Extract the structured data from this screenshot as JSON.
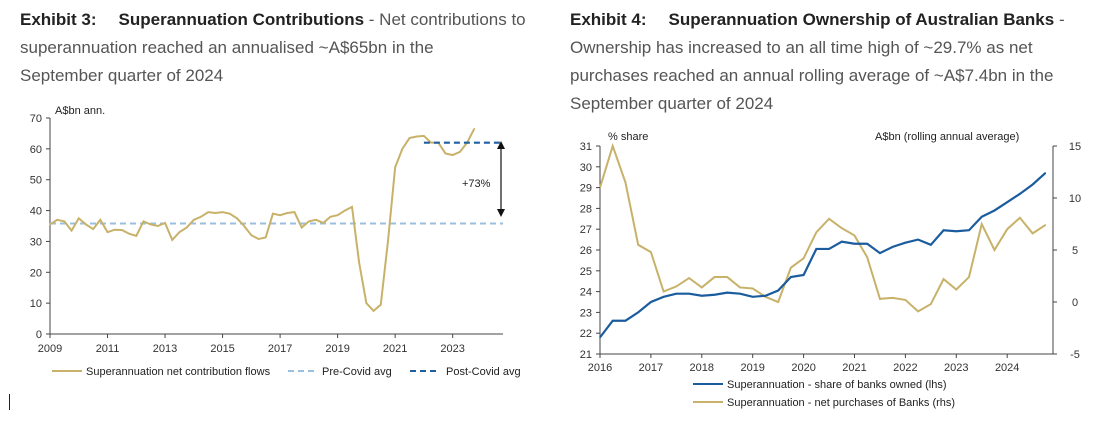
{
  "exhibit3": {
    "number": "Exhibit 3:",
    "heading": "Superannuation Contributions",
    "dash": " - ",
    "desc_line1": "Net contributions to",
    "desc_line2": "superannuation reached an annualised ~A$65bn in the",
    "desc_line3": "September quarter of 2024"
  },
  "exhibit4": {
    "number": "Exhibit 4:",
    "heading": "Superannuation Ownership of Australian Banks",
    "dash": " -",
    "desc_line1": "Ownership has increased to an all time high of ~29.7% as net",
    "desc_line2": "purchases reached an annual rolling average of ~A$7.4bn in the",
    "desc_line3": "September quarter of 2024"
  },
  "colors": {
    "gold": "#c8b26a",
    "navy": "#1b5c9e",
    "lightblue": "#9bbfde",
    "darkblue": "#1f5fa0"
  },
  "chart_data": [
    {
      "type": "line",
      "ylabel": "A$bn ann.",
      "ylim": [
        0,
        70
      ],
      "yticks": [
        "0",
        "10",
        "20",
        "30",
        "40",
        "50",
        "60",
        "70"
      ],
      "xlim": [
        2009,
        2024.75
      ],
      "xticks": [
        "2009",
        "2011",
        "2013",
        "2015",
        "2017",
        "2019",
        "2021",
        "2023"
      ],
      "annotation": "+73%",
      "series": [
        {
          "name": "Superannuation net contribution flows",
          "points": [
            [
              2009,
              35.5
            ],
            [
              2009.25,
              37
            ],
            [
              2009.5,
              36.5
            ],
            [
              2009.75,
              33.5
            ],
            [
              2010,
              37.5
            ],
            [
              2010.25,
              35.5
            ],
            [
              2010.5,
              34
            ],
            [
              2010.75,
              37
            ],
            [
              2011,
              33
            ],
            [
              2011.25,
              33.8
            ],
            [
              2011.5,
              33.7
            ],
            [
              2011.75,
              32.5
            ],
            [
              2012,
              31.8
            ],
            [
              2012.25,
              36.5
            ],
            [
              2012.5,
              35.5
            ],
            [
              2012.75,
              35
            ],
            [
              2013,
              36
            ],
            [
              2013.25,
              30.5
            ],
            [
              2013.5,
              33
            ],
            [
              2013.75,
              34.5
            ],
            [
              2014,
              37
            ],
            [
              2014.25,
              38
            ],
            [
              2014.5,
              39.5
            ],
            [
              2014.75,
              39.2
            ],
            [
              2015,
              39.5
            ],
            [
              2015.25,
              39
            ],
            [
              2015.5,
              37.5
            ],
            [
              2015.75,
              35
            ],
            [
              2016,
              32
            ],
            [
              2016.25,
              30.8
            ],
            [
              2016.5,
              31.3
            ],
            [
              2016.75,
              39
            ],
            [
              2017,
              38.5
            ],
            [
              2017.25,
              39.2
            ],
            [
              2017.5,
              39.5
            ],
            [
              2017.75,
              34.5
            ],
            [
              2018,
              36.5
            ],
            [
              2018.25,
              37
            ],
            [
              2018.5,
              36
            ],
            [
              2018.75,
              38
            ],
            [
              2019,
              38.5
            ],
            [
              2019.25,
              40
            ],
            [
              2019.5,
              41.2
            ],
            [
              2019.75,
              23
            ],
            [
              2020,
              10
            ],
            [
              2020.25,
              7.5
            ],
            [
              2020.5,
              9.5
            ],
            [
              2020.75,
              30
            ],
            [
              2021,
              54
            ],
            [
              2021.25,
              60
            ],
            [
              2021.5,
              63.5
            ],
            [
              2021.75,
              64
            ],
            [
              2022,
              64.2
            ],
            [
              2022.25,
              62
            ],
            [
              2022.5,
              62
            ],
            [
              2022.75,
              58.5
            ],
            [
              2023,
              58
            ],
            [
              2023.25,
              59
            ],
            [
              2023.5,
              62
            ],
            [
              2023.75,
              66.5
            ]
          ]
        },
        {
          "name": "Pre-Covid avg",
          "from": 2009,
          "to": 2024.75,
          "value": 35.8
        },
        {
          "name": "Post-Covid avg",
          "from": 2022,
          "to": 2024.75,
          "value": 62
        }
      ]
    },
    {
      "type": "line",
      "ylabel_left": "% share",
      "ylabel_right": "A$bn (rolling annual average)",
      "ylim_left": [
        21,
        31
      ],
      "ylim_right": [
        -5,
        15
      ],
      "yticks_left": [
        "21",
        "22",
        "23",
        "24",
        "25",
        "26",
        "27",
        "28",
        "29",
        "30",
        "31"
      ],
      "yticks_right": [
        "-5",
        "0",
        "5",
        "10",
        "15"
      ],
      "xlim": [
        2016,
        2024.9
      ],
      "xticks": [
        "2016",
        "2017",
        "2018",
        "2019",
        "2020",
        "2021",
        "2022",
        "2023",
        "2024"
      ],
      "series": [
        {
          "name": "Superannuation - share of banks owned (lhs)",
          "axis": "left",
          "points": [
            [
              2016,
              21.8
            ],
            [
              2016.25,
              22.6
            ],
            [
              2016.5,
              22.6
            ],
            [
              2016.75,
              23
            ],
            [
              2017,
              23.5
            ],
            [
              2017.25,
              23.75
            ],
            [
              2017.5,
              23.9
            ],
            [
              2017.75,
              23.9
            ],
            [
              2018,
              23.8
            ],
            [
              2018.25,
              23.85
            ],
            [
              2018.5,
              23.95
            ],
            [
              2018.75,
              23.9
            ],
            [
              2019,
              23.75
            ],
            [
              2019.25,
              23.8
            ],
            [
              2019.5,
              24.05
            ],
            [
              2019.75,
              24.7
            ],
            [
              2020,
              24.8
            ],
            [
              2020.25,
              26.05
            ],
            [
              2020.5,
              26.05
            ],
            [
              2020.75,
              26.4
            ],
            [
              2021,
              26.3
            ],
            [
              2021.25,
              26.3
            ],
            [
              2021.5,
              25.85
            ],
            [
              2021.75,
              26.15
            ],
            [
              2022,
              26.35
            ],
            [
              2022.25,
              26.5
            ],
            [
              2022.5,
              26.25
            ],
            [
              2022.75,
              26.95
            ],
            [
              2023,
              26.9
            ],
            [
              2023.25,
              26.95
            ],
            [
              2023.5,
              27.6
            ],
            [
              2023.75,
              27.9
            ],
            [
              2024,
              28.3
            ],
            [
              2024.25,
              28.7
            ],
            [
              2024.5,
              29.15
            ],
            [
              2024.75,
              29.7
            ]
          ]
        },
        {
          "name": "Superannuation - net purchases of Banks (rhs)",
          "axis": "right",
          "points": [
            [
              2016,
              11
            ],
            [
              2016.25,
              15
            ],
            [
              2016.5,
              11.5
            ],
            [
              2016.75,
              5.5
            ],
            [
              2017,
              4.8
            ],
            [
              2017.25,
              1
            ],
            [
              2017.5,
              1.5
            ],
            [
              2017.75,
              2.3
            ],
            [
              2018,
              1.4
            ],
            [
              2018.25,
              2.4
            ],
            [
              2018.5,
              2.4
            ],
            [
              2018.75,
              1.4
            ],
            [
              2019,
              1.3
            ],
            [
              2019.25,
              0.5
            ],
            [
              2019.5,
              0
            ],
            [
              2019.75,
              3.3
            ],
            [
              2020,
              4.2
            ],
            [
              2020.25,
              6.7
            ],
            [
              2020.5,
              8
            ],
            [
              2020.75,
              7.1
            ],
            [
              2021,
              6.4
            ],
            [
              2021.25,
              4.3
            ],
            [
              2021.5,
              0.3
            ],
            [
              2021.75,
              0.4
            ],
            [
              2022,
              0.2
            ],
            [
              2022.25,
              -0.9
            ],
            [
              2022.5,
              -0.2
            ],
            [
              2022.75,
              2.2
            ],
            [
              2023,
              1.2
            ],
            [
              2023.25,
              2.4
            ],
            [
              2023.5,
              7.5
            ],
            [
              2023.75,
              5
            ],
            [
              2024,
              7
            ],
            [
              2024.25,
              8.1
            ],
            [
              2024.5,
              6.6
            ],
            [
              2024.75,
              7.4
            ]
          ]
        }
      ]
    }
  ]
}
